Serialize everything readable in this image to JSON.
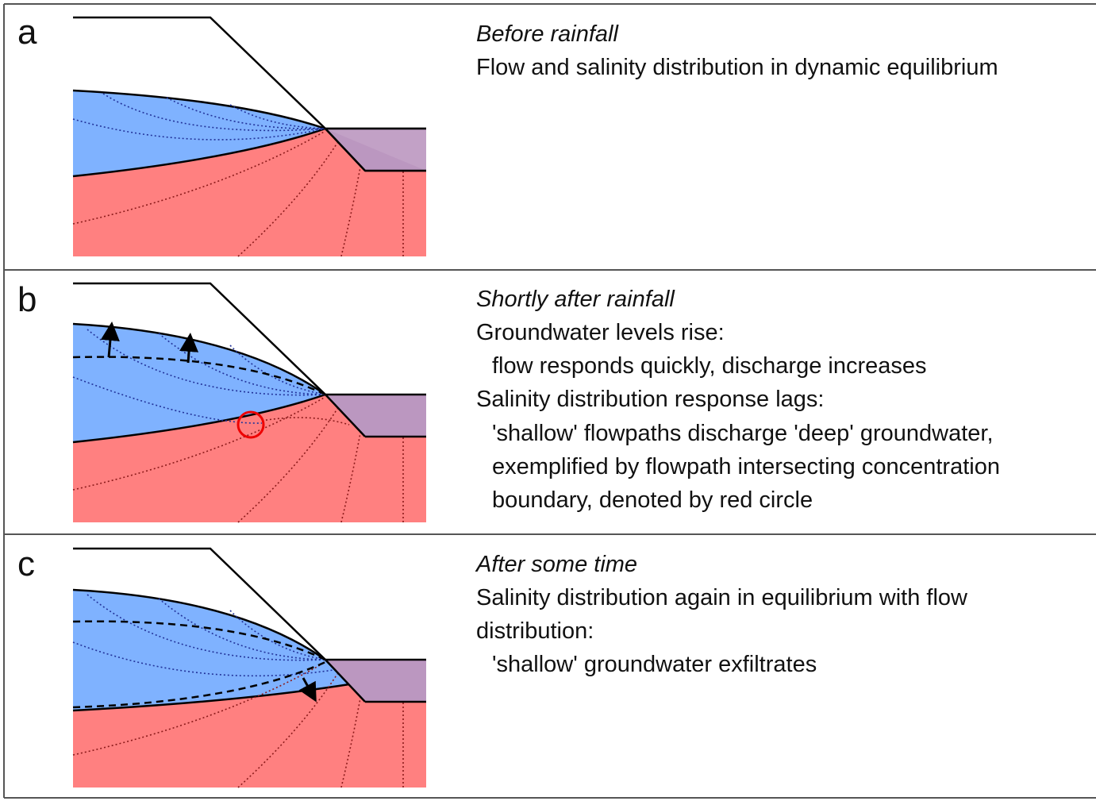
{
  "panels": [
    {
      "label": "a",
      "title": "Before rainfall",
      "lines": [
        "Flow and salinity distribution in dynamic equilibrium"
      ]
    },
    {
      "label": "b",
      "title": "Shortly after rainfall",
      "lines": [
        "Groundwater levels rise:",
        "flow responds quickly, discharge increases",
        "Salinity distribution response lags:",
        "'shallow' flowpaths discharge 'deep' groundwater,",
        "exemplified by flowpath intersecting concentration",
        "boundary, denoted by red circle"
      ]
    },
    {
      "label": "c",
      "title": "After some time",
      "lines": [
        "Salinity distribution again in equilibrium with flow",
        "distribution:",
        "'shallow' groundwater exfiltrates"
      ]
    }
  ]
}
